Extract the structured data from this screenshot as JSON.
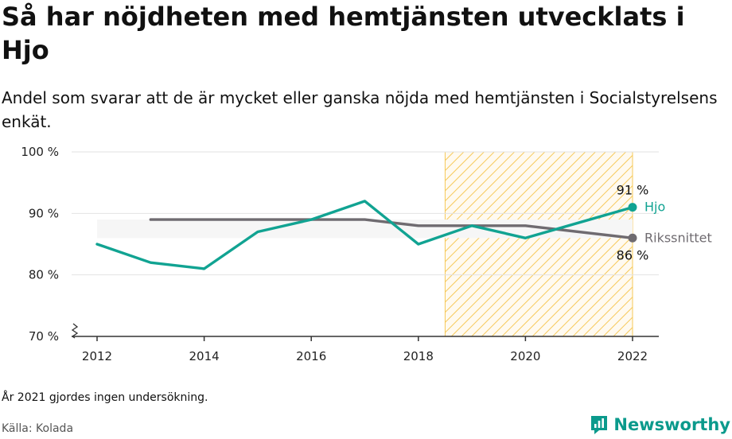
{
  "title": "Så har nöjdheten med hemtjänsten utvecklats i Hjo",
  "subtitle": "Andel som svarar att de är mycket eller ganska nöjda med hemtjänsten i Socialstyrelsens enkät.",
  "footnote": "År 2021 gjordes ingen undersökning.",
  "source": "Källa: Kolada",
  "brand": {
    "name": "Newsworthy",
    "icon": "newsworthy-logo-icon"
  },
  "colors": {
    "hjo": "#11a392",
    "riks": "#6f6b70",
    "highlight": "#f6c95a",
    "grid": "#e2e2e2"
  },
  "chart_data": {
    "type": "line",
    "title": "Så har nöjdheten med hemtjänsten utvecklats i Hjo",
    "xlabel": "",
    "ylabel": "",
    "xlim": [
      2011.6,
      2022.5
    ],
    "ylim": [
      70,
      100
    ],
    "x_ticks": [
      2012,
      2014,
      2016,
      2018,
      2020,
      2022
    ],
    "y_ticks": [
      {
        "value": 70,
        "label": "70 %"
      },
      {
        "value": 80,
        "label": "80 %"
      },
      {
        "value": 90,
        "label": "90 %"
      },
      {
        "value": 100,
        "label": "100 %"
      }
    ],
    "grid": true,
    "axis_break": true,
    "highlight_band": {
      "from": 2018.5,
      "to": 2022
    },
    "range_band": {
      "from": 2012,
      "to": 2022,
      "low": 86,
      "high": 89
    },
    "series": [
      {
        "name": "Hjo",
        "color": "#11a392",
        "x": [
          2012,
          2013,
          2014,
          2015,
          2016,
          2017,
          2018,
          2019,
          2020,
          2022
        ],
        "y": [
          85,
          82,
          81,
          87,
          89,
          92,
          85,
          88,
          86,
          91
        ],
        "end_label": "91 %"
      },
      {
        "name": "Rikssnittet",
        "color": "#6f6b70",
        "x": [
          2013,
          2014,
          2015,
          2016,
          2017,
          2018,
          2019,
          2020,
          2022
        ],
        "y": [
          89,
          89,
          89,
          89,
          89,
          88,
          88,
          88,
          86
        ],
        "end_label": "86 %"
      }
    ]
  }
}
